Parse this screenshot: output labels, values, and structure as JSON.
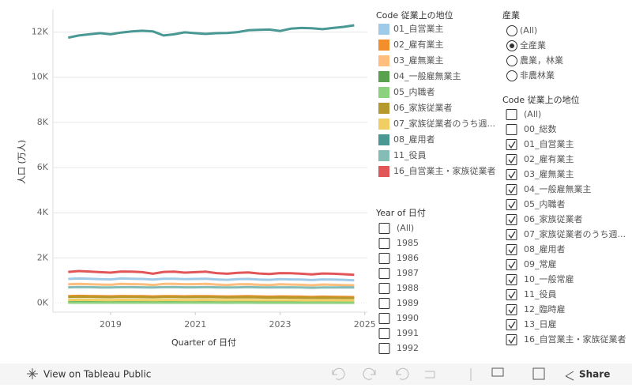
{
  "chart_data": {
    "type": "line",
    "y_label": "人口 (万人)",
    "x_label": "Quarter of 日付",
    "x": [
      2018,
      2018.25,
      2018.5,
      2018.75,
      2019,
      2019.25,
      2019.5,
      2019.75,
      2020,
      2020.25,
      2020.5,
      2020.75,
      2021,
      2021.25,
      2021.5,
      2021.75,
      2022,
      2022.25,
      2022.5,
      2022.75,
      2023,
      2023.25,
      2023.5,
      2023.75,
      2024,
      2024.25,
      2024.5,
      2024.75
    ],
    "xlim": [
      2017.64,
      2025.06
    ],
    "xticks": [
      2019,
      2021,
      2023,
      2025
    ],
    "ylim": [
      -400,
      13000
    ],
    "yticks": [
      {
        "value": 0,
        "label": "0K"
      },
      {
        "value": 2000,
        "label": "2K"
      },
      {
        "value": 4000,
        "label": "4K"
      },
      {
        "value": 6000,
        "label": "6K"
      },
      {
        "value": 8000,
        "label": "8K"
      },
      {
        "value": 10000,
        "label": "10K"
      },
      {
        "value": 12000,
        "label": "12K"
      }
    ],
    "grid": true,
    "legend_title": "Code 従業上の地位",
    "series": [
      {
        "name": "01_自営業主",
        "color": "#a0cbe8",
        "values": [
          1070,
          1090,
          1080,
          1060,
          1050,
          1090,
          1080,
          1070,
          1040,
          1080,
          1080,
          1060,
          1070,
          1080,
          1050,
          1030,
          1060,
          1070,
          1040,
          1030,
          1060,
          1050,
          1040,
          1020,
          1050,
          1040,
          1030,
          1010
        ]
      },
      {
        "name": "02_雇有業主",
        "color": "#f28e2b",
        "values": [
          310,
          320,
          315,
          305,
          300,
          315,
          310,
          305,
          295,
          310,
          310,
          300,
          305,
          310,
          300,
          290,
          300,
          305,
          295,
          285,
          295,
          290,
          285,
          275,
          285,
          280,
          275,
          265
        ]
      },
      {
        "name": "03_雇無業主",
        "color": "#ffbe7d",
        "values": [
          830,
          850,
          840,
          820,
          810,
          850,
          840,
          830,
          800,
          850,
          850,
          830,
          840,
          850,
          820,
          800,
          830,
          840,
          810,
          800,
          830,
          820,
          810,
          790,
          820,
          810,
          800,
          790
        ]
      },
      {
        "name": "04_一般雇無業主",
        "color": "#59a14f",
        "values": [
          60,
          62,
          61,
          60,
          59,
          61,
          61,
          60,
          58,
          61,
          61,
          60,
          60,
          61,
          59,
          58,
          60,
          60,
          59,
          58,
          59,
          59,
          58,
          57,
          58,
          58,
          57,
          56
        ]
      },
      {
        "name": "05_内職者",
        "color": "#8cd17d",
        "values": [
          20,
          21,
          20,
          20,
          19,
          20,
          20,
          19,
          19,
          20,
          20,
          19,
          19,
          20,
          19,
          18,
          19,
          19,
          18,
          18,
          18,
          18,
          18,
          17,
          18,
          17,
          17,
          17
        ]
      },
      {
        "name": "06_家族従業者",
        "color": "#b6992d",
        "values": [
          270,
          280,
          275,
          265,
          260,
          275,
          270,
          265,
          255,
          270,
          270,
          260,
          265,
          270,
          260,
          250,
          255,
          260,
          250,
          245,
          250,
          245,
          240,
          235,
          240,
          235,
          230,
          225
        ]
      },
      {
        "name": "07_家族従業者のうち週...",
        "color": "#f1ce63",
        "values": [
          140,
          145,
          142,
          138,
          135,
          142,
          140,
          138,
          132,
          140,
          140,
          135,
          137,
          140,
          134,
          130,
          133,
          135,
          130,
          127,
          130,
          128,
          125,
          122,
          125,
          123,
          120,
          118
        ]
      },
      {
        "name": "08_雇用者",
        "color": "#499894",
        "values": [
          11750,
          11850,
          11900,
          11950,
          11900,
          11980,
          12030,
          12060,
          12030,
          11850,
          11900,
          11990,
          11950,
          11920,
          11950,
          11960,
          12000,
          12080,
          12100,
          12110,
          12050,
          12150,
          12180,
          12170,
          12130,
          12180,
          12230,
          12300
        ]
      },
      {
        "name": "11_役員",
        "color": "#86bcb6",
        "values": [
          700,
          710,
          705,
          695,
          690,
          705,
          705,
          700,
          690,
          705,
          710,
          700,
          700,
          710,
          700,
          690,
          700,
          710,
          700,
          690,
          700,
          700,
          690,
          680,
          690,
          690,
          700,
          690
        ]
      },
      {
        "name": "16_自営業主・家族従業者",
        "color": "#e15759",
        "values": [
          1380,
          1420,
          1400,
          1370,
          1350,
          1400,
          1390,
          1370,
          1300,
          1380,
          1390,
          1350,
          1370,
          1390,
          1330,
          1300,
          1340,
          1360,
          1310,
          1290,
          1330,
          1320,
          1300,
          1270,
          1310,
          1300,
          1280,
          1250
        ]
      }
    ]
  },
  "industry_filter": {
    "title": "産業",
    "options": [
      "(All)",
      "全産業",
      "農業，林業",
      "非農林業"
    ],
    "selected": 1
  },
  "year_filter": {
    "title": "Year of 日付",
    "options": [
      "(All)",
      "1985",
      "1986",
      "1987",
      "1988",
      "1989",
      "1990",
      "1991",
      "1992"
    ],
    "checked": [
      false,
      false,
      false,
      false,
      false,
      false,
      false,
      false,
      false
    ]
  },
  "code_filter": {
    "title": "Code 従業上の地位",
    "options": [
      "(All)",
      "00_総数",
      "01_自営業主",
      "02_雇有業主",
      "03_雇無業主",
      "04_一般雇無業主",
      "05_内職者",
      "06_家族従業者",
      "07_家族従業者のうち週...",
      "08_雇用者",
      "09_常雇",
      "10_一般常雇",
      "11_役員",
      "12_臨時雇",
      "13_日雇",
      "16_自営業主・家族従業者"
    ],
    "checked": [
      false,
      false,
      true,
      true,
      true,
      true,
      true,
      true,
      true,
      true,
      true,
      true,
      true,
      true,
      true,
      true
    ]
  },
  "toolbar": {
    "view_link": "View on Tableau Public",
    "share": "Share"
  }
}
